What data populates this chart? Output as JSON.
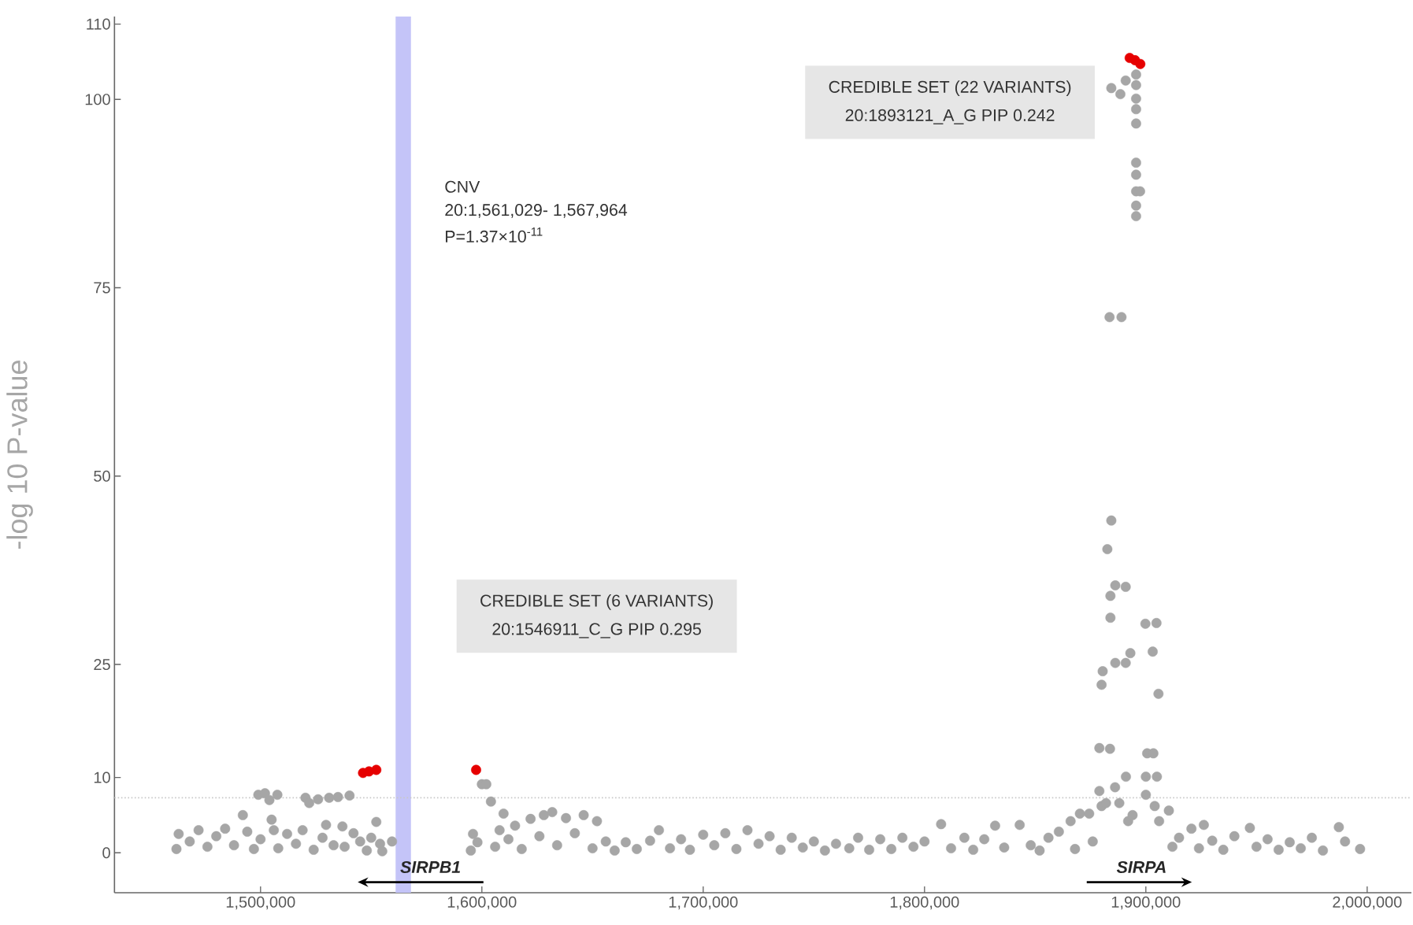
{
  "chart_data": {
    "type": "scatter",
    "ylabel": "-log 10 P-value",
    "xlim": [
      1434000,
      2020000
    ],
    "ylim": [
      -5.3,
      111
    ],
    "xticks": [
      {
        "value": 1500000,
        "label": "1,500,000"
      },
      {
        "value": 1600000,
        "label": "1,600,000"
      },
      {
        "value": 1700000,
        "label": "1,700,000"
      },
      {
        "value": 1800000,
        "label": "1,800,000"
      },
      {
        "value": 1900000,
        "label": "1,900,000"
      },
      {
        "value": 2000000,
        "label": "2,000,000"
      }
    ],
    "yticks": [
      0,
      10,
      25,
      50,
      75,
      100,
      110
    ],
    "grid": false,
    "series": [
      {
        "color": "#a6a6a6",
        "x": [
          1462000,
          1463000,
          1468000,
          1472000,
          1476000,
          1480000,
          1484000,
          1488000,
          1492000,
          1494000,
          1497000,
          1499000,
          1500000,
          1502000,
          1504000,
          1505000,
          1506000,
          1507600,
          1508000,
          1512000,
          1516000,
          1519000,
          1520300,
          1522000,
          1524000,
          1526000,
          1528000,
          1529600,
          1531000,
          1533000,
          1535000,
          1537000,
          1538000,
          1540200,
          1542000,
          1545000,
          1548000,
          1550000,
          1552300,
          1554000,
          1555000,
          1559400,
          1595000,
          1596000,
          1598000,
          1600000,
          1602000,
          1604100,
          1606000,
          1608000,
          1609800,
          1612000,
          1615000,
          1618000,
          1622000,
          1626000,
          1628000,
          1631800,
          1634000,
          1638000,
          1642000,
          1646000,
          1650000,
          1652000,
          1656000,
          1660000,
          1665000,
          1670000,
          1676000,
          1680000,
          1685000,
          1690000,
          1694000,
          1700000,
          1705000,
          1710000,
          1715000,
          1720000,
          1725000,
          1730000,
          1735000,
          1740000,
          1745000,
          1750000,
          1755000,
          1760000,
          1766000,
          1770000,
          1775000,
          1780000,
          1785000,
          1790000,
          1795000,
          1800000,
          1807500,
          1812000,
          1818000,
          1822000,
          1827000,
          1831900,
          1836000,
          1843000,
          1848000,
          1852000,
          1856000,
          1860700,
          1866000,
          1868000,
          1870200,
          1874400,
          1876000,
          1879000,
          1879000,
          1880000,
          1880000,
          1880500,
          1882000,
          1882600,
          1883600,
          1883800,
          1884000,
          1884000,
          1884400,
          1884400,
          1886100,
          1886200,
          1886200,
          1888000,
          1888500,
          1889000,
          1890900,
          1890900,
          1890900,
          1891000,
          1892000,
          1893000,
          1894000,
          1895600,
          1895600,
          1895600,
          1895600,
          1895600,
          1895600,
          1895600,
          1895600,
          1895600,
          1895600,
          1897400,
          1899800,
          1900000,
          1900000,
          1900600,
          1903100,
          1903400,
          1904000,
          1904800,
          1905000,
          1905700,
          1906000,
          1910400,
          1912000,
          1915000,
          1920600,
          1924000,
          1926200,
          1930000,
          1935000,
          1940000,
          1947000,
          1950000,
          1955000,
          1960000,
          1965000,
          1970000,
          1975000,
          1980000,
          1987200,
          1990000,
          1996800
        ],
        "values": [
          0.5,
          2.5,
          1.5,
          3.0,
          0.8,
          2.2,
          3.2,
          1.0,
          5.0,
          2.8,
          0.5,
          7.7,
          1.8,
          7.9,
          7.0,
          4.4,
          3.0,
          7.7,
          0.6,
          2.5,
          1.2,
          3.0,
          7.3,
          6.6,
          0.4,
          7.1,
          2.0,
          3.7,
          7.3,
          1.0,
          7.4,
          3.5,
          0.8,
          7.6,
          2.6,
          1.5,
          0.3,
          2.0,
          4.1,
          1.2,
          0.2,
          1.5,
          0.3,
          2.5,
          1.4,
          9.1,
          9.1,
          6.8,
          0.8,
          3.0,
          5.2,
          1.8,
          3.6,
          0.5,
          4.5,
          2.2,
          5.0,
          5.4,
          1.0,
          4.6,
          2.6,
          5.0,
          0.6,
          4.2,
          1.5,
          0.3,
          1.4,
          0.5,
          1.6,
          3.0,
          0.6,
          1.8,
          0.4,
          2.4,
          1.0,
          2.6,
          0.5,
          3.0,
          1.2,
          2.2,
          0.4,
          2.0,
          0.7,
          1.5,
          0.3,
          1.2,
          0.6,
          2.0,
          0.4,
          1.8,
          0.5,
          2.0,
          0.8,
          1.5,
          3.8,
          0.6,
          2.0,
          0.4,
          1.8,
          3.6,
          0.7,
          3.7,
          1.0,
          0.3,
          2.0,
          2.8,
          4.2,
          0.5,
          5.2,
          5.2,
          1.5,
          8.2,
          13.9,
          6.2,
          22.3,
          24.1,
          6.6,
          40.3,
          71.1,
          13.8,
          31.2,
          34.1,
          44.1,
          101.5,
          8.7,
          25.2,
          35.5,
          6.6,
          100.7,
          71.1,
          25.2,
          35.3,
          102.5,
          10.1,
          4.2,
          26.5,
          5.0,
          84.5,
          85.9,
          87.8,
          90.0,
          91.6,
          96.8,
          98.7,
          100.1,
          101.9,
          103.3,
          87.8,
          30.4,
          7.7,
          10.1,
          13.2,
          26.7,
          13.2,
          6.2,
          30.5,
          10.1,
          21.1,
          4.2,
          5.6,
          0.8,
          2.0,
          3.2,
          0.6,
          3.7,
          1.6,
          0.4,
          2.2,
          3.3,
          0.8,
          1.8,
          0.4,
          1.4,
          0.6,
          2.0,
          0.3,
          3.4,
          1.5,
          0.5
        ]
      },
      {
        "color": "#e60000",
        "x": [
          1546300,
          1549000,
          1552300,
          1597400,
          1892700,
          1893900,
          1895100,
          1896300,
          1897500
        ],
        "values": [
          10.6,
          10.8,
          11.0,
          11.0,
          105.5,
          null,
          105.2,
          null,
          104.7
        ]
      }
    ],
    "ref_lines": [
      {
        "axis": "y",
        "value": 7.3,
        "color": "#c8c8c8",
        "line_style": "dotted"
      }
    ],
    "bands": [
      {
        "axis": "x",
        "from": 1561029,
        "to": 1567964,
        "color": "#c4c4f8"
      }
    ],
    "annotations": [
      "CNV",
      "20:1,561,029- 1,567,964",
      "P=1.37×10$^{-11}$",
      "CREDIBLE SET (6 VARIANTS)",
      "20:1546911_C_G PIP 0.295",
      "CREDIBLE SET (22 VARIANTS)",
      "20:1893121_A_G PIP 0.242",
      "SIRPB1",
      "SIRPA"
    ]
  }
}
